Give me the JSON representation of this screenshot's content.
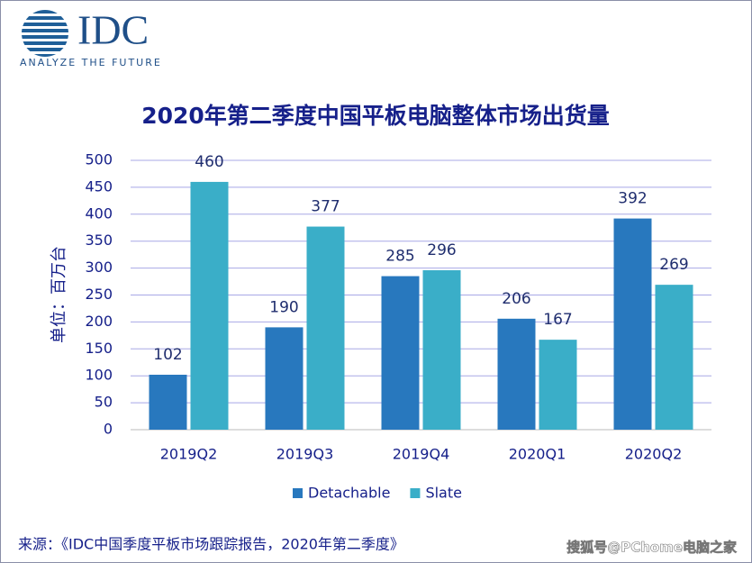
{
  "logo": {
    "name": "IDC",
    "tagline": "ANALYZE THE FUTURE"
  },
  "chart_data": {
    "type": "bar",
    "title": "2020年第二季度中国平板电脑整体市场出货量",
    "y_label": "单位：百万台",
    "categories": [
      "2019Q2",
      "2019Q3",
      "2019Q4",
      "2020Q1",
      "2020Q2"
    ],
    "series": [
      {
        "name": "Detachable",
        "color": "#2878be",
        "values": [
          102,
          190,
          285,
          206,
          392
        ]
      },
      {
        "name": "Slate",
        "color": "#3aaec8",
        "values": [
          460,
          377,
          296,
          167,
          269
        ]
      }
    ],
    "ylim": [
      0,
      500
    ],
    "yticks": [
      0,
      50,
      100,
      150,
      200,
      250,
      300,
      350,
      400,
      450,
      500
    ],
    "grid": true,
    "legend": "bottom"
  },
  "source": "来源：《IDC中国季度平板市场跟踪报告，2020年第二季度》",
  "watermark": "搜狐号@PChome电脑之家"
}
